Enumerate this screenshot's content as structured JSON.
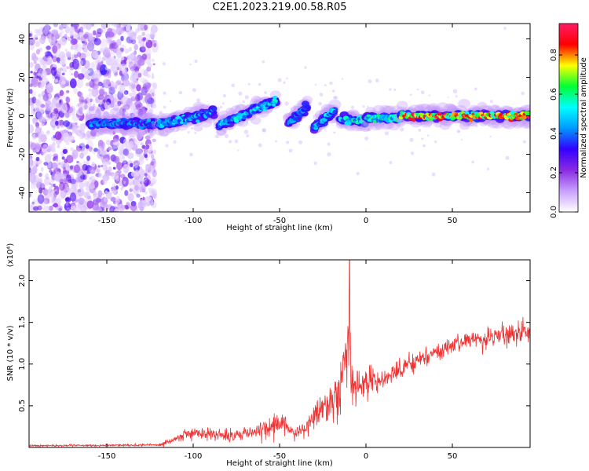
{
  "title": "C2E1.2023.219.00.58.R05",
  "chart_data": [
    {
      "type": "heatmap",
      "name": "spectrogram",
      "xlabel": "Height of straight line (km)",
      "ylabel": "Frequency (Hz)",
      "xlim": [
        -195,
        95
      ],
      "ylim": [
        -50,
        48
      ],
      "xticks": [
        -150,
        -100,
        -50,
        0,
        50
      ],
      "yticks": [
        -40,
        -20,
        0,
        20,
        40
      ],
      "colorbar": {
        "label": "Normalized spectral amplitude",
        "range": [
          0,
          0.96
        ],
        "ticks": [
          0.0,
          0.2,
          0.4,
          0.6,
          0.8
        ],
        "colormap": [
          "#ffffff",
          "#c8a0ff",
          "#8a2be2",
          "#3300ff",
          "#0099ff",
          "#00ffff",
          "#00ff33",
          "#ffff00",
          "#ff0000",
          "#ff1a66"
        ]
      },
      "features": {
        "noise_region_x": [
          -195,
          -122
        ],
        "trace_segments": [
          {
            "x": [
              -160,
              -122
            ],
            "y": [
              -4,
              -4
            ],
            "amp": 0.45
          },
          {
            "x": [
              -120,
              -88
            ],
            "y": [
              -5,
              2
            ],
            "amp": 0.5
          },
          {
            "x": [
              -85,
              -52
            ],
            "y": [
              -5,
              8
            ],
            "amp": 0.55
          },
          {
            "x": [
              -45,
              -34
            ],
            "y": [
              -4,
              5
            ],
            "amp": 0.45
          },
          {
            "x": [
              -30,
              -18
            ],
            "y": [
              -6,
              3
            ],
            "amp": 0.5
          },
          {
            "x": [
              -15,
              0
            ],
            "y": [
              -2,
              -3
            ],
            "amp": 0.6
          },
          {
            "x": [
              0,
              20
            ],
            "y": [
              -1,
              -1
            ],
            "amp": 0.65
          },
          {
            "x": [
              20,
              95
            ],
            "y": [
              0,
              0
            ],
            "amp": 0.9
          }
        ]
      }
    },
    {
      "type": "line",
      "name": "snr",
      "xlabel": "Height of straight line (km)",
      "ylabel": "SNR (10 * v/v)",
      "multiplier": "(x10⁴)",
      "color": "#ee3333",
      "xlim": [
        -195,
        95
      ],
      "ylim": [
        0,
        2.25
      ],
      "xticks": [
        -150,
        -100,
        -50,
        0,
        50
      ],
      "yticks": [
        0.5,
        1.0,
        1.5,
        2.0
      ],
      "ytick_labels": [
        "0.5",
        "1.0",
        "1.5",
        "2.0"
      ],
      "envelope": {
        "x": [
          -195,
          -120,
          -115,
          -100,
          -80,
          -60,
          -50,
          -40,
          -35,
          -30,
          -20,
          -15,
          -12,
          -10,
          -8,
          -5,
          0,
          10,
          20,
          30,
          40,
          50,
          60,
          70,
          80,
          95
        ],
        "mean": [
          0.02,
          0.03,
          0.06,
          0.18,
          0.15,
          0.2,
          0.3,
          0.18,
          0.22,
          0.4,
          0.55,
          0.7,
          1.0,
          1.3,
          0.7,
          0.75,
          0.8,
          0.8,
          0.95,
          1.05,
          1.15,
          1.2,
          1.3,
          1.3,
          1.35,
          1.4
        ],
        "noise": [
          0.01,
          0.01,
          0.03,
          0.06,
          0.06,
          0.08,
          0.12,
          0.07,
          0.08,
          0.15,
          0.2,
          0.3,
          0.35,
          0.4,
          0.25,
          0.2,
          0.15,
          0.12,
          0.1,
          0.1,
          0.08,
          0.08,
          0.08,
          0.09,
          0.1,
          0.1
        ]
      },
      "peak": {
        "x": -9.5,
        "y": 2.25
      }
    }
  ]
}
